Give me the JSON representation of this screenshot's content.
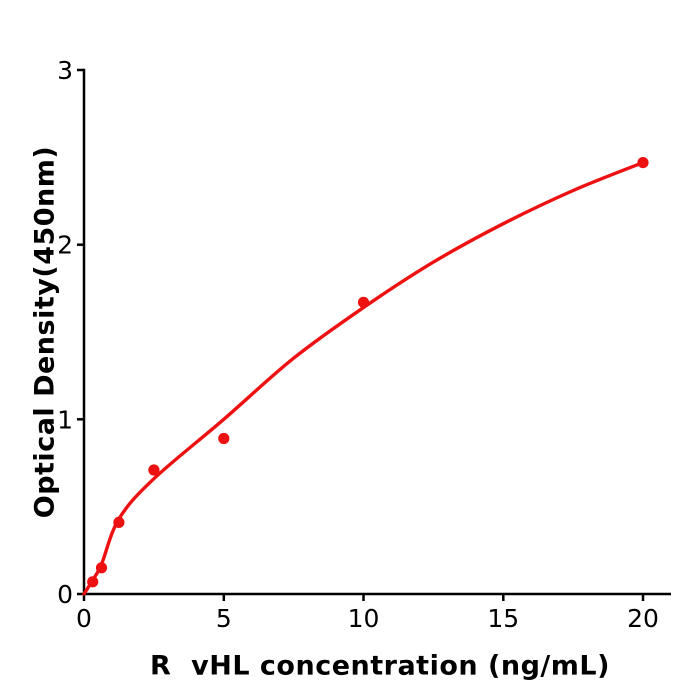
{
  "chart_data": {
    "type": "scatter",
    "title": "",
    "xlabel": "R  vHL concentration (ng/mL)",
    "ylabel": "Optical Density(450nm)",
    "xlim": [
      0,
      21
    ],
    "ylim": [
      0,
      3
    ],
    "x_ticks": [
      0,
      5,
      10,
      15,
      20
    ],
    "y_ticks": [
      0,
      1,
      2,
      3
    ],
    "grid": false,
    "legend": "none",
    "axis_color": "#000000",
    "background_color": "#ffffff",
    "series": [
      {
        "name": "standard-curve-points",
        "type": "scatter",
        "color": "#ee1111",
        "x": [
          0.313,
          0.625,
          1.25,
          2.5,
          5,
          10,
          20
        ],
        "y": [
          0.07,
          0.15,
          0.41,
          0.71,
          0.89,
          1.67,
          2.47
        ]
      },
      {
        "name": "fitted-curve",
        "type": "line",
        "color": "#ee1111",
        "x": [
          0,
          0.313,
          0.625,
          1.25,
          2.5,
          5,
          7.5,
          10,
          12.5,
          15,
          17.5,
          20
        ],
        "y": [
          0,
          0.08,
          0.17,
          0.43,
          0.66,
          1.0,
          1.35,
          1.64,
          1.9,
          2.12,
          2.31,
          2.47
        ]
      }
    ]
  }
}
